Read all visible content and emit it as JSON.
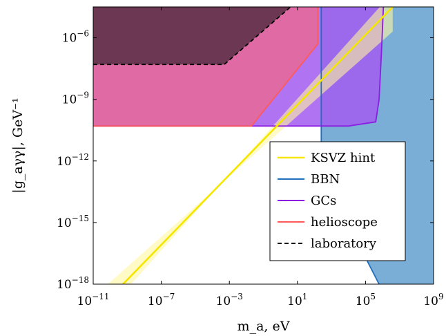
{
  "chart_data": {
    "type": "area",
    "xlabel": "m_a, eV",
    "ylabel": "|g_aγγ|, GeV⁻¹",
    "x_scale": "log",
    "y_scale": "log",
    "xlim_log10": [
      -11,
      9
    ],
    "ylim_log10": [
      -18,
      -4.5
    ],
    "x_ticks": [
      {
        "exp": -11,
        "label": "10",
        "sup": "−11"
      },
      {
        "exp": -7,
        "label": "10",
        "sup": "−7"
      },
      {
        "exp": -3,
        "label": "10",
        "sup": "−3"
      },
      {
        "exp": 1,
        "label": "10",
        "sup": "1"
      },
      {
        "exp": 5,
        "label": "10",
        "sup": "5"
      },
      {
        "exp": 9,
        "label": "10",
        "sup": "9"
      }
    ],
    "y_ticks": [
      {
        "exp": -18,
        "label": "10",
        "sup": "−18"
      },
      {
        "exp": -15,
        "label": "10",
        "sup": "−15"
      },
      {
        "exp": -12,
        "label": "10",
        "sup": "−12"
      },
      {
        "exp": -9,
        "label": "10",
        "sup": "−9"
      },
      {
        "exp": -6,
        "label": "10",
        "sup": "−6"
      }
    ],
    "legend_position": "bottom-right",
    "series": [
      {
        "name": "KSVZ hint",
        "color": "#f5e600",
        "line": [
          [
            -9.6,
            -18.3
          ],
          [
            6.6,
            -4.5
          ]
        ],
        "band": [
          [
            -10.55,
            -18.3
          ],
          [
            -9.1,
            -18.3
          ],
          [
            6.6,
            -3.8
          ],
          [
            6.6,
            -5.7
          ]
        ]
      },
      {
        "name": "BBN",
        "color": "#1f6fbf",
        "fill": "#7aaed6",
        "region": [
          [
            2.4,
            -4.5
          ],
          [
            9,
            -4.5
          ],
          [
            9,
            -18
          ],
          [
            5.8,
            -18
          ],
          [
            2.4,
            -12.5
          ]
        ]
      },
      {
        "name": "GCs",
        "color": "#8b1de0",
        "fill": "#a25cf0",
        "region": [
          [
            -11,
            -10.3
          ],
          [
            4.0,
            -10.3
          ],
          [
            5.6,
            -10.1
          ],
          [
            5.8,
            -9.0
          ],
          [
            5.95,
            -6.5
          ],
          [
            6.05,
            -4.5
          ],
          [
            -11,
            -4.5
          ]
        ]
      },
      {
        "name": "helioscope",
        "color": "#ff5a5a",
        "fill": "#e06aa4",
        "region": [
          [
            -11,
            -10.3
          ],
          [
            -1.7,
            -10.3
          ],
          [
            2.2,
            -6.3
          ],
          [
            2.2,
            -4.5
          ],
          [
            -11,
            -4.5
          ]
        ]
      },
      {
        "name": "laboratory",
        "color": "#000000",
        "fill": "#6b3752",
        "dash": true,
        "region": [
          [
            -11,
            -7.3
          ],
          [
            -3.3,
            -7.3
          ],
          [
            0.6,
            -4.5
          ],
          [
            -11,
            -4.5
          ]
        ]
      }
    ]
  }
}
